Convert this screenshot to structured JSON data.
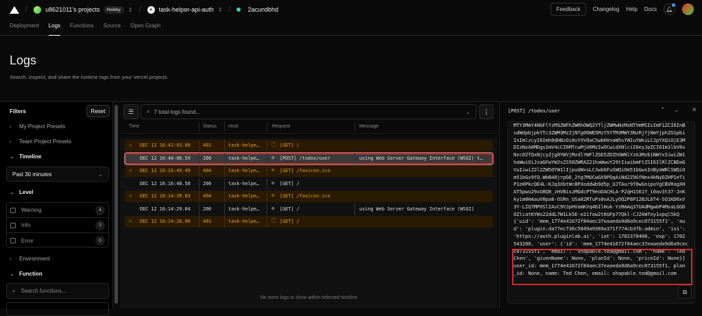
{
  "topbar": {
    "team": "u8621011's projects",
    "plan": "Hobby",
    "project": "task-helper-api-auth",
    "deployment": "2acundbhd",
    "feedback": "Feedback",
    "changelog": "Changelog",
    "help": "Help",
    "docs": "Docs"
  },
  "tabs": [
    "Deployment",
    "Logs",
    "Functions",
    "Source",
    "Open Graph"
  ],
  "header": {
    "title": "Logs",
    "subtitle": "Search, inspect, and share the runtime logs from your Vercel projects."
  },
  "filters": {
    "title": "Filters",
    "reset": "Reset",
    "my_presets": "My Project Presets",
    "team_presets": "Team Project Presets",
    "timeline": "Timeline",
    "timeline_value": "Past 30 minutes",
    "level": "Level",
    "levels": [
      {
        "label": "Warning",
        "count": "4"
      },
      {
        "label": "Info",
        "count": "3"
      },
      {
        "label": "Error",
        "count": "0"
      }
    ],
    "environment": "Environment",
    "function": "Function",
    "search_functions_placeholder": "Search functions..."
  },
  "logs": {
    "search_placeholder": "7 total logs found...",
    "columns": [
      "Time",
      "Status",
      "Host",
      "Request",
      "Message"
    ],
    "rows": [
      {
        "time": "DEC 12 16:42:03.00",
        "status": "401",
        "host": "task-helpe…",
        "request": "[GET] /",
        "message": "",
        "level": "warning",
        "icon": "file-icon"
      },
      {
        "time": "DEC 12 16:40:08.59",
        "status": "200",
        "host": "task-helpe…",
        "request": "[POST] /todos/user",
        "message": "using Web Server Gateway Interface (WSGI) t…",
        "level": "info",
        "icon": "function-icon"
      },
      {
        "time": "DEC 12 16:16:49.49",
        "status": "404",
        "host": "task-helpe…",
        "request": "[GET] /favicon.ico",
        "message": "",
        "level": "warning",
        "icon": "function-icon"
      },
      {
        "time": "DEC 12 16:16:48.58",
        "status": "200",
        "host": "task-helpe…",
        "request": "[GET] /",
        "message": "",
        "level": "info",
        "icon": "function-icon"
      },
      {
        "time": "DEC 12 16:14:30.83",
        "status": "404",
        "host": "task-helpe…",
        "request": "[GET] /favicon.ico",
        "message": "",
        "level": "warning",
        "icon": "function-icon"
      },
      {
        "time": "DEC 12 16:14:29.04",
        "status": "200",
        "host": "task-helpe…",
        "request": "[GET] /",
        "message": "using Web Server Gateway Interface (WSGI)",
        "level": "info",
        "icon": "function-icon"
      },
      {
        "time": "DEC 12 16:14:28.00",
        "status": "401",
        "host": "task-helpe…",
        "request": "[GET] /",
        "message": "",
        "level": "warning",
        "icon": "file-icon"
      }
    ],
    "no_more": "No more logs to show within selected timeline"
  },
  "detail": {
    "title": "[POST] /todos/user",
    "lines": [
      "MTY3MmY4NGFlYzM3ZWFhZWRhOWQ2YTljZWMwNzMxNTVmMSIsImF1ZCI6InB",
      "sdWdpbjpkYTc3ZWM3MzZjNTg0OWE5MzY5YTM3MWY3NzRjYjNmYjphZG1pbi",
      "IsImlzcyI6Imh0dHBzOi8vYXV0aC5wbHVnaW5sYWIuYWkiLCJpYXQiOjE3M",
      "DIzNzA0MDgsImV4cCI6MTcwMjU0MzIwOCwidXNlciI6eyJpZCI6Im1lbV8x",
      "Nzc0ZTQxNjcyZjg0YWVjMzdlYWFlZGE5ZDZhOWNlYzA3MzE1NWYxIiwiZW1",
      "haWwiOiJzaGFwYWJsZS50ZWRAZ21haWwuY29tIiwibmFtZSI6IlRlZCBDaG",
      "VuIiwiZ2l2ZW5OYW1lIjpudWxsLCJwbGFuSWQiOm51bGwsInByaWNlSWQiO",
      "m51bGx9fQ.WbB48jrpG6_2Yg7MUCwGX9PQqAiNd2Z9GfNex4kNyDZHPIeTi",
      "P1e0PkcQE4L-KJq3XbtWcBPXoddwb9d5p_UJTAur9f0wGnipoYgCBVRogXH",
      "AT5pwu29xU8Q8_zHVBiszMGdcPT9eoDACHLA-P2qH1S61Y_i0av3t37-JnK",
      "kyim0HAauV0pa8-OSRn_USa82RTuPs0sAJLyOQ2P8P12BJL6T4-SQ1KD0xV",
      "3Y-LIQ7MPOSlIAvC9VJpHVamKVq46IlHuk-YzRmAq37UAdMgwbP4MsaLGGD",
      "OZlcatKYWs22ddL7W1Lk5E-e2ifow2t6GFp77Qkl-CJ2kWfny1xpql5kQ",
      "{'uid': 'mem_1774e41672f84aec37eaaeda9d6a9cec073155f1', 'au",
      "d': 'plugin:da77ec736c5849a9369a371f774cb3fb:admin', 'iss':",
      "'https://auth.pluginlab.ai', 'iat': 1702370408, 'exp': 1702",
      "543208, 'user': {'id': 'mem_1774e41672f84aec37eaaeda9d6a9cec",
      "c073155f1', 'email': 'shapable.ted@gmail.com', 'name': 'Ted",
      "Chen', 'givenName': None, 'planId': None, 'priceId': None}}",
      "user_id: mem_1774e41672f84aec37eaaeda9d6a9cec073155f1, plan",
      "_id: None, name: Ted Chen, email: shapable.ted@gmail.com"
    ]
  },
  "colors": {
    "warning": "#e5a026",
    "warning_bg": "#2a1a02",
    "highlight": "#d62b2b",
    "accent_dot": "#3dd6b0"
  }
}
